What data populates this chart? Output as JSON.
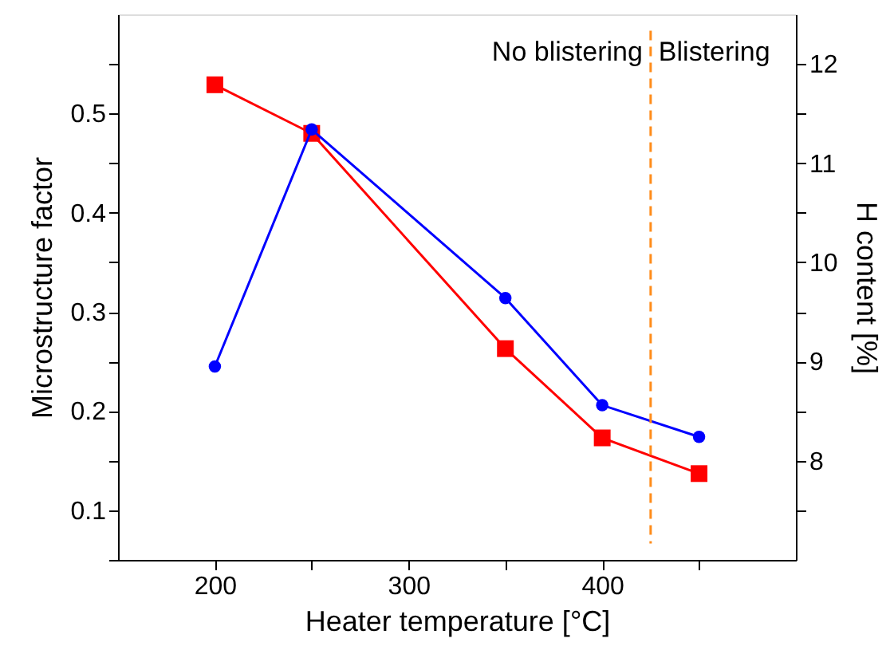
{
  "chart_data": {
    "type": "line",
    "xlabel": "Heater temperature [°C]",
    "ylabel": "Microstructure factor",
    "y2label": "H content [%]",
    "x": [
      200,
      250,
      350,
      400,
      450
    ],
    "series": [
      {
        "color": "#ff0000",
        "marker": "square",
        "values": [
          0.529,
          0.48,
          0.263,
          0.173,
          0.137
        ]
      },
      {
        "color": "#0000ff",
        "marker": "circle",
        "axis": "y2",
        "values": [
          8.95,
          11.34,
          9.64,
          8.56,
          8.24
        ]
      }
    ],
    "xlim": [
      150,
      500
    ],
    "xticks": [
      200,
      {
        "value": 250,
        "label": null
      },
      300,
      {
        "value": 350,
        "label": null
      },
      400,
      {
        "value": 450,
        "label": null
      }
    ],
    "ylim": [
      0.05,
      0.6
    ],
    "yticks": [
      {
        "value": 0.05,
        "label": null
      },
      0.1,
      {
        "value": 0.15,
        "label": null
      },
      0.2,
      {
        "value": 0.25,
        "label": null
      },
      0.3,
      {
        "value": 0.35,
        "label": null
      },
      0.4,
      {
        "value": 0.45,
        "label": null
      },
      0.5,
      {
        "value": 0.55,
        "label": null
      }
    ],
    "y2lim": [
      7,
      12.5
    ],
    "y2ticks": [
      {
        "value": 7.5,
        "label": null
      },
      8,
      {
        "value": 8.5,
        "label": null
      },
      9,
      {
        "value": 9.5,
        "label": null
      },
      10,
      {
        "value": 10.5,
        "label": null
      },
      11,
      {
        "value": 11.5,
        "label": null
      },
      12
    ],
    "ref_lines": [
      {
        "axis": "x",
        "value": 425,
        "color": "#ff8c1a",
        "line_style": "dashed"
      }
    ],
    "annotations": [
      "No blistering",
      "Blistering"
    ],
    "grid": false
  }
}
